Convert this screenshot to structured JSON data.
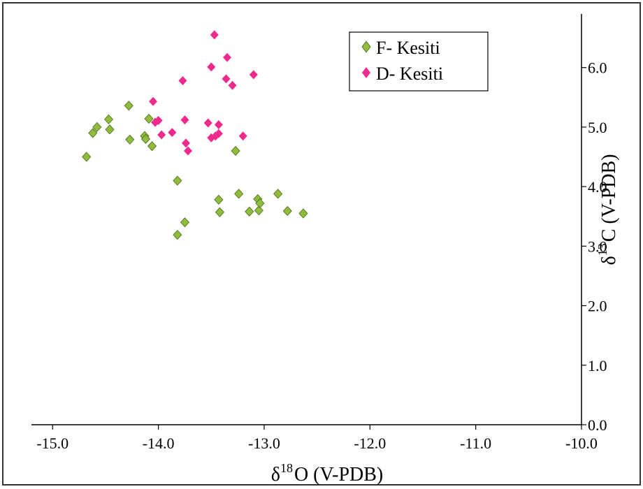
{
  "chart_data": {
    "type": "scatter",
    "xlabel_main": "δ",
    "xlabel_sup": "18",
    "xlabel_rest": "O (V-PDB)",
    "ylabel_main": "δ",
    "ylabel_sup": "13",
    "ylabel_rest": "C (V-PDB)",
    "xlim": [
      -15.2,
      -10.0
    ],
    "ylim": [
      0.0,
      6.9
    ],
    "x_ticks": [
      -15.0,
      -14.0,
      -13.0,
      -12.0,
      -11.0,
      -10.0
    ],
    "x_tick_labels": [
      "-15.0",
      "-14.0",
      "-13.0",
      "-12.0",
      "-11.0",
      "-10.0"
    ],
    "y_ticks": [
      0.0,
      1.0,
      2.0,
      3.0,
      4.0,
      5.0,
      6.0
    ],
    "y_tick_labels": [
      "0.0",
      "1.0",
      "2.0",
      "3.0",
      "4.0",
      "5.0",
      "6.0"
    ],
    "grid": false,
    "legend_position": "top-right",
    "series": [
      {
        "name": "F- Kesiti",
        "color": "#8fbc3c",
        "marker": "diamond",
        "x": [
          -14.68,
          -14.62,
          -14.58,
          -14.47,
          -14.46,
          -14.28,
          -14.27,
          -14.13,
          -14.12,
          -14.09,
          -14.06,
          -13.82,
          -13.82,
          -13.75,
          -13.43,
          -13.42,
          -13.27,
          -13.24,
          -13.14,
          -13.06,
          -13.05,
          -13.04,
          -12.87,
          -12.78,
          -12.63
        ],
        "y": [
          4.5,
          4.9,
          5.0,
          5.13,
          4.96,
          5.36,
          4.79,
          4.85,
          4.8,
          5.14,
          4.68,
          4.1,
          3.19,
          3.4,
          3.78,
          3.57,
          4.6,
          3.88,
          3.58,
          3.79,
          3.6,
          3.72,
          3.88,
          3.59,
          3.55
        ]
      },
      {
        "name": "D- Kesiti",
        "color": "#ee2b8c",
        "marker": "diamond",
        "x": [
          -14.05,
          -14.03,
          -14.0,
          -13.97,
          -13.87,
          -13.77,
          -13.75,
          -13.74,
          -13.72,
          -13.53,
          -13.5,
          -13.5,
          -13.47,
          -13.46,
          -13.43,
          -13.43,
          -13.36,
          -13.35,
          -13.3,
          -13.2,
          -13.1
        ],
        "y": [
          5.43,
          5.08,
          5.11,
          4.87,
          4.91,
          5.78,
          5.12,
          4.73,
          4.6,
          5.07,
          4.82,
          6.01,
          6.55,
          4.85,
          4.89,
          5.04,
          5.81,
          6.17,
          5.7,
          4.85,
          5.88
        ]
      }
    ]
  }
}
